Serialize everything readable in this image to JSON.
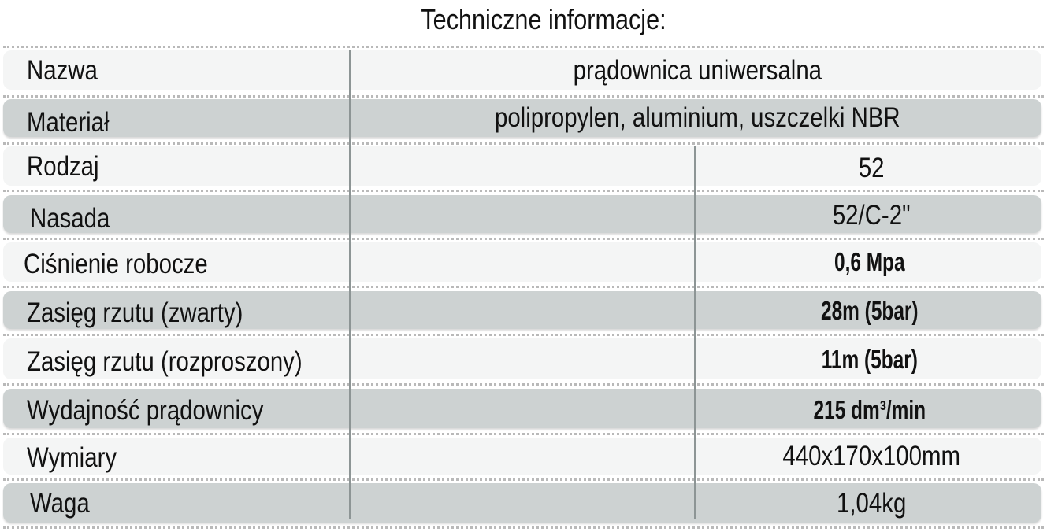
{
  "title": "Techniczne informacje:",
  "rows": [
    {
      "label": "Nazwa",
      "value": "prądownica uniwersalna"
    },
    {
      "label": "Materiał",
      "value": "polipropylen, aluminium, uszczelki NBR"
    },
    {
      "label": "Rodzaj",
      "value": "52"
    },
    {
      "label": "Nasada",
      "value": "52/C-2\""
    },
    {
      "label": "Ciśnienie robocze",
      "value": "0,6 Mpa"
    },
    {
      "label": "Zasięg rzutu (zwarty)",
      "value": "28m (5bar)"
    },
    {
      "label": "Zasięg rzutu (rozproszony)",
      "value": "11m (5bar)"
    },
    {
      "label": "Wydajność prądownicy",
      "value": "215 dm³/min"
    },
    {
      "label": "Wymiary",
      "value": "440x170x100mm"
    },
    {
      "label": "Waga",
      "value": "1,04kg"
    }
  ]
}
